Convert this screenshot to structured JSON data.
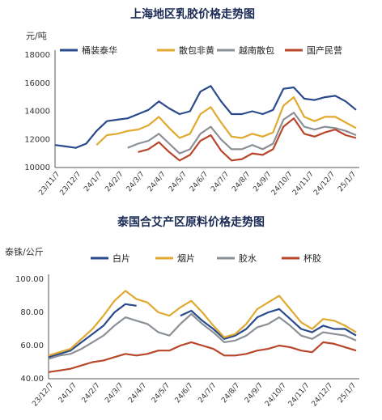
{
  "chart_data": [
    {
      "type": "line",
      "title": "上海地区乳胶价格走势图",
      "ylabel": "元/吨",
      "ylim": [
        10000,
        18000
      ],
      "yticks": [
        10000,
        12000,
        14000,
        16000,
        18000
      ],
      "xticks": [
        "23/11/7",
        "23/12/7",
        "24/1/7",
        "24/2/7",
        "24/3/7",
        "24/4/7",
        "24/5/7",
        "24/6/7",
        "24/7/7",
        "24/8/7",
        "24/9/7",
        "24/10/7",
        "24/11/7",
        "24/12/7",
        "25/1/7"
      ],
      "x": [
        "23/11/7",
        "23/11/22",
        "23/12/7",
        "23/12/22",
        "24/1/7",
        "24/1/22",
        "24/2/7",
        "24/2/22",
        "24/3/7",
        "24/3/22",
        "24/4/7",
        "24/4/22",
        "24/5/7",
        "24/5/22",
        "24/6/7",
        "24/6/22",
        "24/7/7",
        "24/7/22",
        "24/8/7",
        "24/8/22",
        "24/9/7",
        "24/9/22",
        "24/10/7",
        "24/10/22",
        "24/11/7",
        "24/11/22",
        "24/12/7",
        "24/12/22",
        "25/1/7",
        "25/1/15"
      ],
      "legend_position": "top",
      "series": [
        {
          "name": "桶装泰华",
          "color": "#2a4a8c",
          "values": [
            11600,
            11500,
            11400,
            11700,
            12600,
            13300,
            13400,
            13500,
            13800,
            14100,
            14700,
            14200,
            13800,
            14000,
            15400,
            15800,
            14700,
            13800,
            13800,
            14000,
            13800,
            14100,
            15600,
            15700,
            14900,
            14800,
            15000,
            15100,
            14700,
            14100
          ]
        },
        {
          "name": "散包非黄",
          "color": "#e0a92f",
          "values": [
            null,
            null,
            null,
            null,
            11600,
            12300,
            12400,
            12600,
            12700,
            13000,
            13600,
            12800,
            12100,
            12400,
            13800,
            14300,
            13200,
            12200,
            12100,
            12400,
            12200,
            12500,
            14400,
            15000,
            13600,
            13300,
            13600,
            13600,
            13200,
            12800
          ]
        },
        {
          "name": "越南散包",
          "color": "#8b9096",
          "values": [
            null,
            null,
            null,
            null,
            null,
            null,
            null,
            11400,
            11700,
            11900,
            12400,
            11700,
            11000,
            11300,
            12400,
            12900,
            12000,
            11300,
            11300,
            11600,
            11300,
            11700,
            13400,
            13900,
            12900,
            12700,
            12900,
            12800,
            12600,
            12300
          ]
        },
        {
          "name": "国产民营",
          "color": "#b8462a",
          "values": [
            null,
            null,
            null,
            null,
            null,
            null,
            null,
            null,
            11100,
            11300,
            11800,
            11100,
            10500,
            10900,
            11900,
            12300,
            11200,
            10500,
            10600,
            11000,
            10900,
            11300,
            12900,
            13500,
            12400,
            12200,
            12500,
            12700,
            12300,
            12100
          ]
        }
      ]
    },
    {
      "type": "line",
      "title": "泰国合艾产区原料价格走势图",
      "ylabel": "泰铢/公斤",
      "ylim": [
        40,
        100
      ],
      "yticks": [
        "40.00",
        "60.00",
        "80.00",
        "100.00"
      ],
      "xticks": [
        "23/12/7",
        "24/1/7",
        "24/2/7",
        "24/3/7",
        "24/4/7",
        "24/5/7",
        "24/6/7",
        "24/7/7",
        "24/8/7",
        "24/9/7",
        "24/10/7",
        "24/11/7",
        "24/12/7",
        "25/1/7"
      ],
      "x": [
        "23/12/7",
        "23/12/22",
        "24/1/7",
        "24/1/22",
        "24/2/7",
        "24/2/22",
        "24/3/7",
        "24/3/15",
        "24/3/22",
        "24/4/7",
        "24/4/22",
        "24/5/7",
        "24/5/22",
        "24/6/7",
        "24/6/22",
        "24/7/7",
        "24/7/22",
        "24/8/7",
        "24/8/22",
        "24/9/7",
        "24/9/22",
        "24/10/7",
        "24/10/22",
        "24/11/7",
        "24/11/22",
        "24/12/7",
        "24/12/22",
        "25/1/7",
        "25/1/15"
      ],
      "legend_position": "top",
      "series": [
        {
          "name": "白片",
          "color": "#2a4a8c",
          "values": [
            53,
            55,
            57,
            62,
            67,
            72,
            80,
            85,
            84,
            null,
            null,
            null,
            78,
            81,
            75,
            70,
            64,
            66,
            70,
            77,
            80,
            82,
            76,
            70,
            68,
            72,
            70,
            70,
            66
          ]
        },
        {
          "name": "烟片",
          "color": "#e0a92f",
          "values": [
            54,
            56,
            58,
            64,
            70,
            78,
            87,
            93,
            88,
            86,
            80,
            78,
            83,
            87,
            80,
            72,
            65,
            67,
            73,
            82,
            86,
            90,
            82,
            74,
            70,
            76,
            75,
            72,
            68
          ]
        },
        {
          "name": "胶水",
          "color": "#8b9096",
          "values": [
            52,
            54,
            55,
            58,
            62,
            66,
            72,
            77,
            75,
            73,
            68,
            66,
            73,
            79,
            73,
            68,
            62,
            63,
            66,
            71,
            73,
            77,
            72,
            66,
            64,
            68,
            67,
            66,
            63
          ]
        },
        {
          "name": "杯胶",
          "color": "#b8462a",
          "values": [
            44,
            45,
            46,
            48,
            50,
            51,
            53,
            55,
            54,
            55,
            57,
            57,
            60,
            62,
            60,
            58,
            54,
            54,
            55,
            57,
            58,
            60,
            59,
            57,
            56,
            62,
            61,
            59,
            57
          ]
        }
      ]
    }
  ]
}
